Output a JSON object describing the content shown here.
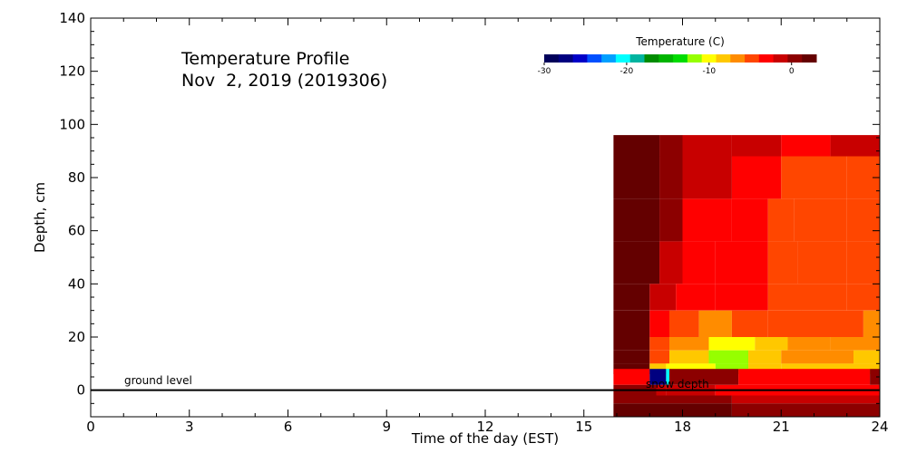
{
  "chart_data": {
    "type": "heatmap",
    "title": "Temperature Profile",
    "subtitle": "Nov  2, 2019 (2019306)",
    "xlabel": "Time of the day (EST)",
    "ylabel": "Depth, cm",
    "xlim": [
      0,
      24
    ],
    "ylim": [
      -10,
      140
    ],
    "x_ticks": [
      0,
      3,
      6,
      9,
      12,
      15,
      18,
      21,
      24
    ],
    "y_ticks": [
      0,
      20,
      40,
      60,
      80,
      100,
      120,
      140
    ],
    "grid": false,
    "colorbar": {
      "label": "Temperature (C)",
      "range": [
        -30,
        3
      ],
      "tick_values": [
        -30,
        -20,
        -10,
        0
      ],
      "tick_labels": [
        "-30",
        "-20",
        "-10",
        "0"
      ],
      "colors": [
        "#00005a",
        "#000080",
        "#0000c8",
        "#0050ff",
        "#00a0ff",
        "#00ffff",
        "#00b4a0",
        "#008c00",
        "#00b400",
        "#00dc00",
        "#96ff00",
        "#ffff00",
        "#ffc800",
        "#ff8c00",
        "#ff4600",
        "#ff0000",
        "#c80000",
        "#8c0000",
        "#640000"
      ]
    },
    "annotations": {
      "ground_level": "ground level",
      "snow_depth": "snow depth"
    },
    "ground_level_depth": 0,
    "data_extent": {
      "x": [
        15.9,
        24
      ],
      "y": [
        -10,
        96
      ]
    },
    "depth_bands": [
      {
        "y": [
          88,
          96
        ],
        "segments": [
          [
            15.9,
            17.3,
            1
          ],
          [
            17.3,
            18.0,
            0.95
          ],
          [
            18.0,
            19.5,
            0.9
          ],
          [
            19.5,
            21.0,
            0.88
          ],
          [
            21.0,
            22.5,
            0.85
          ],
          [
            22.5,
            24,
            0.88
          ]
        ]
      },
      {
        "y": [
          72,
          88
        ],
        "segments": [
          [
            15.9,
            17.3,
            1
          ],
          [
            17.3,
            18.0,
            0.95
          ],
          [
            18.0,
            19.5,
            0.88
          ],
          [
            19.5,
            21.0,
            0.85
          ],
          [
            21.0,
            22.0,
            0.8
          ],
          [
            22.0,
            23.0,
            0.78
          ],
          [
            23.0,
            24,
            0.8
          ]
        ]
      },
      {
        "y": [
          56,
          72
        ],
        "segments": [
          [
            15.9,
            17.3,
            1
          ],
          [
            17.3,
            18.0,
            0.92
          ],
          [
            18.0,
            19.5,
            0.85
          ],
          [
            19.5,
            20.6,
            0.82
          ],
          [
            20.6,
            21.4,
            0.76
          ],
          [
            21.4,
            23.0,
            0.75
          ],
          [
            23.0,
            24,
            0.78
          ]
        ]
      },
      {
        "y": [
          40,
          56
        ],
        "segments": [
          [
            15.9,
            17.3,
            1
          ],
          [
            17.3,
            18.0,
            0.9
          ],
          [
            18.0,
            19.0,
            0.84
          ],
          [
            19.0,
            20.6,
            0.82
          ],
          [
            20.6,
            21.5,
            0.76
          ],
          [
            21.5,
            23.0,
            0.75
          ],
          [
            23.0,
            24,
            0.78
          ]
        ]
      },
      {
        "y": [
          30,
          40
        ],
        "segments": [
          [
            15.9,
            17.0,
            1
          ],
          [
            17.0,
            17.8,
            0.87
          ],
          [
            17.8,
            19.0,
            0.82
          ],
          [
            19.0,
            20.6,
            0.82
          ],
          [
            20.6,
            21.6,
            0.8
          ],
          [
            21.6,
            23.0,
            0.76
          ],
          [
            23.0,
            24,
            0.76
          ]
        ]
      },
      {
        "y": [
          20,
          30
        ],
        "segments": [
          [
            15.9,
            17.0,
            1
          ],
          [
            17.0,
            17.6,
            0.83
          ],
          [
            17.6,
            18.5,
            0.78
          ],
          [
            18.5,
            19.5,
            0.73
          ],
          [
            19.5,
            20.6,
            0.76
          ],
          [
            20.6,
            21.6,
            0.8
          ],
          [
            21.6,
            23.5,
            0.75
          ],
          [
            23.5,
            24,
            0.74
          ]
        ]
      },
      {
        "y": [
          15,
          20
        ],
        "segments": [
          [
            15.9,
            17.0,
            1
          ],
          [
            17.0,
            17.6,
            0.8
          ],
          [
            17.6,
            18.8,
            0.73
          ],
          [
            18.8,
            20.2,
            0.62
          ],
          [
            20.2,
            21.2,
            0.68
          ],
          [
            21.2,
            22.5,
            0.74
          ],
          [
            22.5,
            24,
            0.72
          ]
        ]
      },
      {
        "y": [
          10,
          15
        ],
        "segments": [
          [
            15.9,
            17.0,
            1
          ],
          [
            17.0,
            17.6,
            0.76
          ],
          [
            17.6,
            18.8,
            0.66
          ],
          [
            18.8,
            20.0,
            0.58
          ],
          [
            20.0,
            21.0,
            0.66
          ],
          [
            21.0,
            22.0,
            0.7
          ],
          [
            22.0,
            23.2,
            0.7
          ],
          [
            23.2,
            24,
            0.66
          ]
        ]
      },
      {
        "y": [
          6,
          10
        ],
        "segments": [
          [
            15.9,
            17.0,
            1
          ],
          [
            17.0,
            17.5,
            0.66
          ],
          [
            17.5,
            19.0,
            0.63
          ],
          [
            19.0,
            20.0,
            0.58
          ],
          [
            20.0,
            21.0,
            0.66
          ],
          [
            21.0,
            24,
            0.66
          ]
        ]
      },
      {
        "y": [
          2,
          8
        ],
        "segments": [
          [
            15.9,
            17.0,
            0.84
          ],
          [
            17.0,
            17.5,
            0.04
          ],
          [
            17.5,
            17.6,
            0.3
          ],
          [
            17.6,
            19.7,
            0.92
          ],
          [
            19.7,
            23.7,
            0.85
          ],
          [
            23.7,
            24,
            0.92
          ]
        ]
      },
      {
        "y": [
          -2,
          2
        ],
        "segments": [
          [
            15.9,
            17.2,
            0.97
          ],
          [
            17.2,
            17.5,
            0.9
          ],
          [
            17.5,
            19.0,
            0.88
          ],
          [
            19.0,
            24,
            0.86
          ]
        ]
      },
      {
        "y": [
          -5,
          -2
        ],
        "segments": [
          [
            15.9,
            19.5,
            0.95
          ],
          [
            19.5,
            24,
            0.88
          ]
        ]
      },
      {
        "y": [
          -10,
          -5
        ],
        "segments": [
          [
            15.9,
            19.5,
            1
          ],
          [
            19.5,
            24,
            0.95
          ]
        ]
      }
    ]
  }
}
